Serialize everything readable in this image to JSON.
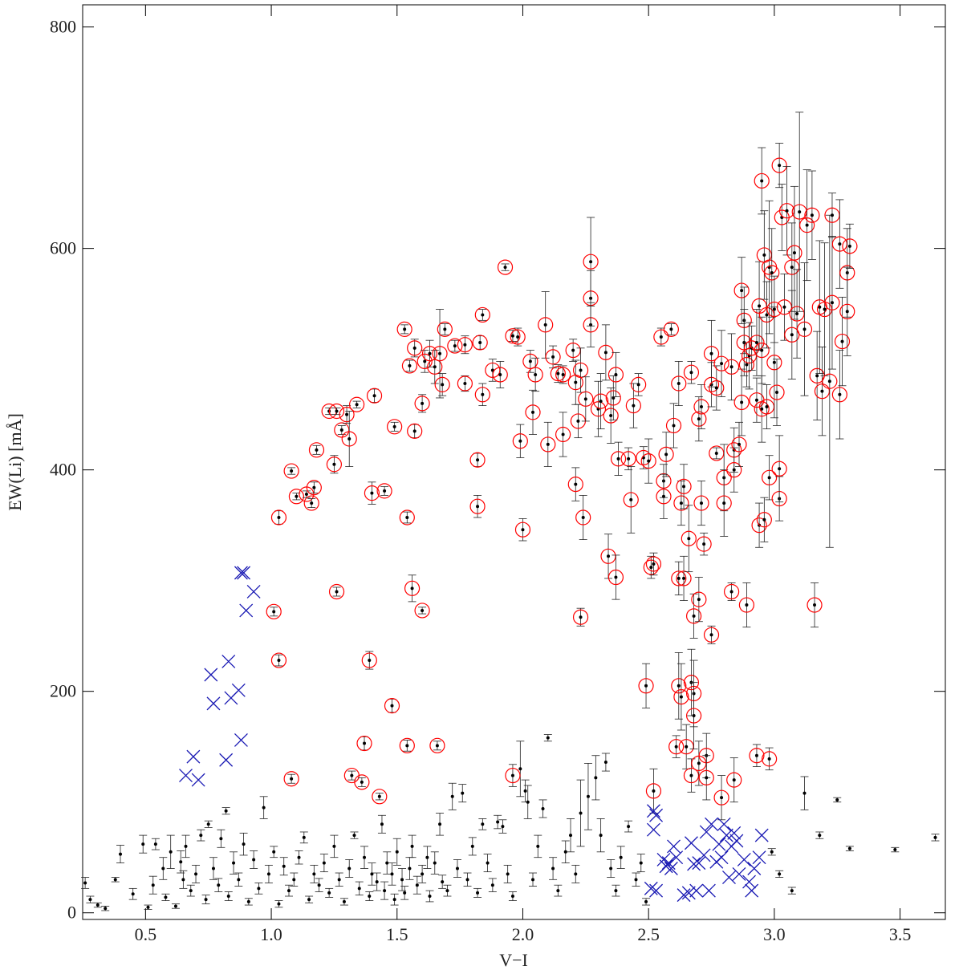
{
  "chart_data": {
    "type": "scatter",
    "x_label": "V−I",
    "y_label": "EW(Li) [mÅ]",
    "xlim": [
      0.25,
      3.68
    ],
    "ylim": [
      -6,
      820
    ],
    "xticks": [
      0.5,
      {
        "value": 1,
        "label": "1.0"
      },
      1.5,
      {
        "value": 2,
        "label": "2.0"
      },
      2.5,
      {
        "value": 3,
        "label": "3.0"
      },
      3.5
    ],
    "yticks": [
      0,
      200,
      400,
      600,
      800
    ],
    "series": [
      {
        "marker": "dot",
        "color": "#000000",
        "x": [
          0.26,
          0.28,
          0.31,
          0.34,
          0.38,
          0.4,
          0.45,
          0.49,
          0.51,
          0.53,
          0.54,
          0.57,
          0.58,
          0.6,
          0.62,
          0.64,
          0.65,
          0.66,
          0.68,
          0.7,
          0.72,
          0.74,
          0.75,
          0.77,
          0.79,
          0.8,
          0.82,
          0.83,
          0.85,
          0.87,
          0.89,
          0.91,
          0.93,
          0.95,
          0.97,
          0.99,
          1.01,
          1.03,
          1.05,
          1.07,
          1.09,
          1.11,
          1.13,
          1.15,
          1.17,
          1.19,
          1.21,
          1.23,
          1.25,
          1.27,
          1.29,
          1.31,
          1.33,
          1.35,
          1.37,
          1.39,
          1.4,
          1.42,
          1.44,
          1.45,
          1.46,
          1.48,
          1.49,
          1.5,
          1.52,
          1.53,
          1.55,
          1.56,
          1.58,
          1.6,
          1.62,
          1.63,
          1.65,
          1.67,
          1.68,
          1.7,
          1.72,
          1.74,
          1.76,
          1.78,
          1.8,
          1.82,
          1.84,
          1.86,
          1.88,
          1.9,
          1.92,
          1.94,
          1.96,
          1.99,
          2.01,
          2.02,
          2.04,
          2.06,
          2.08,
          2.1,
          2.12,
          2.14,
          2.17,
          2.19,
          2.21,
          2.23,
          2.26,
          2.29,
          2.31,
          2.33,
          2.35,
          2.37,
          2.39,
          2.42,
          2.45,
          2.47,
          2.49,
          2.99,
          3.02,
          3.07,
          3.12,
          3.18,
          3.25,
          3.3,
          3.48,
          3.64
        ],
        "values": [
          27,
          12,
          7,
          4,
          30,
          53,
          17,
          62,
          5,
          25,
          62,
          40,
          14,
          55,
          6,
          46,
          30,
          60,
          20,
          35,
          70,
          12,
          80,
          40,
          25,
          67,
          92,
          15,
          45,
          30,
          62,
          10,
          48,
          22,
          95,
          35,
          55,
          8,
          42,
          20,
          30,
          50,
          68,
          12,
          35,
          25,
          45,
          18,
          60,
          30,
          10,
          40,
          70,
          22,
          50,
          15,
          35,
          28,
          80,
          20,
          45,
          35,
          12,
          55,
          30,
          18,
          40,
          60,
          25,
          35,
          50,
          15,
          45,
          80,
          28,
          20,
          105,
          40,
          108,
          30,
          60,
          18,
          80,
          45,
          25,
          82,
          78,
          35,
          15,
          130,
          110,
          100,
          30,
          60,
          94,
          158,
          40,
          20,
          55,
          70,
          35,
          90,
          105,
          122,
          70,
          136,
          40,
          20,
          50,
          78,
          30,
          45,
          10,
          55,
          35,
          20,
          108,
          70,
          102,
          58,
          57,
          68
        ],
        "errors": [
          5,
          3,
          2,
          2,
          2,
          8,
          5,
          8,
          2,
          8,
          5,
          10,
          3,
          15,
          2,
          10,
          8,
          10,
          5,
          8,
          5,
          4,
          3,
          10,
          6,
          8,
          3,
          4,
          10,
          6,
          10,
          3,
          8,
          5,
          10,
          8,
          5,
          3,
          8,
          5,
          6,
          6,
          5,
          3,
          8,
          6,
          8,
          4,
          10,
          6,
          3,
          8,
          3,
          6,
          10,
          4,
          10,
          8,
          8,
          8,
          10,
          10,
          5,
          12,
          10,
          6,
          10,
          10,
          8,
          8,
          10,
          5,
          10,
          10,
          6,
          5,
          12,
          8,
          8,
          6,
          8,
          4,
          5,
          8,
          6,
          6,
          6,
          8,
          4,
          25,
          10,
          15,
          6,
          10,
          8,
          3,
          10,
          5,
          10,
          15,
          8,
          30,
          30,
          20,
          15,
          8,
          8,
          5,
          10,
          5,
          6,
          8,
          3,
          3,
          3,
          3,
          15,
          3,
          2,
          2,
          2,
          3
        ]
      },
      {
        "marker": "circle",
        "color": "#ff0000",
        "x": [
          1.03,
          1.03,
          1.01,
          1.08,
          1.08,
          1.1,
          1.14,
          1.16,
          1.17,
          1.18,
          1.23,
          1.25,
          1.26,
          1.26,
          1.28,
          1.3,
          1.31,
          1.32,
          1.34,
          1.36,
          1.37,
          1.39,
          1.4,
          1.41,
          1.43,
          1.45,
          1.48,
          1.49,
          1.53,
          1.54,
          1.54,
          1.55,
          1.56,
          1.57,
          1.57,
          1.6,
          1.6,
          1.61,
          1.63,
          1.65,
          1.66,
          1.67,
          1.68,
          1.69,
          1.73,
          1.77,
          1.77,
          1.82,
          1.82,
          1.83,
          1.84,
          1.84,
          1.88,
          1.91,
          1.93,
          1.96,
          1.96,
          1.98,
          1.99,
          2.0,
          2.03,
          2.04,
          2.05,
          2.09,
          2.1,
          2.12,
          2.14,
          2.16,
          2.16,
          2.2,
          2.21,
          2.21,
          2.22,
          2.23,
          2.23,
          2.24,
          2.25,
          2.27,
          2.27,
          2.27,
          2.3,
          2.31,
          2.33,
          2.34,
          2.35,
          2.36,
          2.37,
          2.37,
          2.38,
          2.42,
          2.43,
          2.44,
          2.46,
          2.48,
          2.49,
          2.5,
          2.51,
          2.52,
          2.52,
          2.55,
          2.56,
          2.56,
          2.57,
          2.59,
          2.6,
          2.61,
          2.62,
          2.62,
          2.62,
          2.63,
          2.63,
          2.64,
          2.64,
          2.65,
          2.66,
          2.67,
          2.67,
          2.67,
          2.68,
          2.68,
          2.68,
          2.7,
          2.7,
          2.7,
          2.71,
          2.71,
          2.72,
          2.73,
          2.73,
          2.75,
          2.75,
          2.75,
          2.77,
          2.77,
          2.79,
          2.79,
          2.8,
          2.8,
          2.83,
          2.83,
          2.84,
          2.84,
          2.84,
          2.86,
          2.87,
          2.87,
          2.88,
          2.88,
          2.89,
          2.89,
          2.9,
          2.91,
          2.93,
          2.93,
          2.93,
          2.94,
          2.94,
          2.95,
          2.95,
          2.95,
          2.96,
          2.96,
          2.97,
          2.97,
          2.98,
          2.98,
          2.98,
          2.99,
          3.0,
          3.0,
          3.01,
          3.02,
          3.02,
          3.02,
          3.03,
          3.04,
          3.05,
          3.07,
          3.07,
          3.08,
          3.09,
          3.1,
          3.12,
          3.13,
          3.15,
          3.16,
          3.17,
          3.18,
          3.19,
          3.2,
          3.22,
          3.23,
          3.23,
          3.26,
          3.26,
          3.27,
          3.29,
          3.29,
          3.3
        ],
        "values": [
          357,
          228,
          272,
          399,
          121,
          376,
          378,
          370,
          384,
          418,
          453,
          405,
          453,
          290,
          436,
          450,
          428,
          124,
          459,
          118,
          153,
          228,
          379,
          467,
          105,
          381,
          187,
          439,
          527,
          357,
          151,
          494,
          293,
          435,
          510,
          273,
          460,
          498,
          505,
          493,
          151,
          505,
          477,
          527,
          512,
          513,
          478,
          409,
          367,
          515,
          540,
          468,
          490,
          486,
          583,
          521,
          124,
          520,
          426,
          346,
          498,
          452,
          486,
          531,
          423,
          502,
          487,
          486,
          432,
          508,
          387,
          479,
          444,
          490,
          267,
          357,
          464,
          531,
          555,
          588,
          455,
          462,
          506,
          322,
          449,
          465,
          486,
          303,
          410,
          410,
          373,
          458,
          477,
          411,
          205,
          408,
          312,
          315,
          110,
          520,
          390,
          376,
          414,
          527,
          440,
          150,
          478,
          205,
          302,
          370,
          195,
          385,
          302,
          150,
          338,
          208,
          488,
          124,
          268,
          198,
          178,
          446,
          283,
          135,
          370,
          457,
          333,
          142,
          122,
          477,
          505,
          251,
          474,
          415,
          496,
          104,
          393,
          370,
          493,
          290,
          418,
          400,
          120,
          423,
          461,
          562,
          535,
          515,
          278,
          495,
          503,
          510,
          463,
          515,
          142,
          548,
          350,
          661,
          508,
          455,
          594,
          355,
          540,
          457,
          583,
          393,
          139,
          578,
          497,
          545,
          470,
          675,
          374,
          401,
          628,
          547,
          634,
          583,
          522,
          596,
          541,
          633,
          527,
          621,
          630,
          278,
          485,
          547,
          471,
          545,
          480,
          630,
          551,
          604,
          468,
          516,
          578,
          543,
          602
        ],
        "errors": [
          6,
          5,
          4,
          3,
          4,
          3,
          3,
          4,
          5,
          4,
          3,
          8,
          3,
          4,
          4,
          8,
          25,
          4,
          3,
          4,
          6,
          8,
          10,
          6,
          3,
          4,
          6,
          4,
          4,
          5,
          5,
          5,
          12,
          6,
          8,
          3,
          8,
          10,
          12,
          15,
          4,
          40,
          10,
          5,
          5,
          8,
          7,
          6,
          10,
          6,
          5,
          10,
          10,
          12,
          3,
          5,
          10,
          8,
          15,
          10,
          10,
          20,
          15,
          30,
          20,
          10,
          8,
          8,
          20,
          10,
          15,
          20,
          15,
          20,
          8,
          20,
          20,
          20,
          25,
          40,
          25,
          25,
          25,
          20,
          25,
          20,
          20,
          20,
          15,
          10,
          30,
          20,
          10,
          10,
          20,
          20,
          10,
          10,
          20,
          8,
          15,
          20,
          20,
          5,
          20,
          10,
          20,
          30,
          15,
          20,
          30,
          20,
          20,
          20,
          30,
          30,
          10,
          15,
          20,
          30,
          30,
          20,
          20,
          20,
          20,
          20,
          10,
          20,
          20,
          20,
          30,
          8,
          20,
          5,
          30,
          20,
          30,
          30,
          30,
          8,
          20,
          20,
          20,
          20,
          30,
          30,
          30,
          30,
          20,
          20,
          30,
          20,
          20,
          30,
          10,
          40,
          20,
          30,
          30,
          30,
          40,
          20,
          30,
          20,
          60,
          20,
          10,
          40,
          50,
          30,
          30,
          20,
          20,
          30,
          30,
          30,
          40,
          40,
          40,
          60,
          40,
          90,
          60,
          50,
          40,
          20,
          40,
          60,
          40,
          60,
          150,
          20,
          60,
          40,
          40,
          40,
          40,
          40,
          20
        ]
      },
      {
        "marker": "x",
        "color": "#1a1ab4",
        "x": [
          0.66,
          0.69,
          0.71,
          0.76,
          0.77,
          0.82,
          0.83,
          0.84,
          0.87,
          0.88,
          0.88,
          0.89,
          0.9,
          0.93,
          2.52,
          2.52,
          2.53,
          2.51,
          2.53,
          2.56,
          2.57,
          2.58,
          2.59,
          2.6,
          2.61,
          2.64,
          2.66,
          2.67,
          2.68,
          2.69,
          2.7,
          2.72,
          2.73,
          2.74,
          2.75,
          2.77,
          2.78,
          2.79,
          2.8,
          2.81,
          2.82,
          2.83,
          2.84,
          2.85,
          2.86,
          2.88,
          2.9,
          2.91,
          2.92,
          2.94,
          2.95
        ],
        "values": [
          124,
          141,
          120,
          215,
          189,
          138,
          227,
          194,
          201,
          156,
          307,
          307,
          273,
          290,
          92,
          75,
          88,
          22,
          20,
          48,
          42,
          45,
          40,
          60,
          50,
          16,
          18,
          63,
          44,
          20,
          45,
          52,
          73,
          20,
          80,
          46,
          62,
          50,
          80,
          70,
          32,
          60,
          72,
          65,
          35,
          48,
          28,
          20,
          40,
          50,
          70
        ]
      }
    ]
  }
}
